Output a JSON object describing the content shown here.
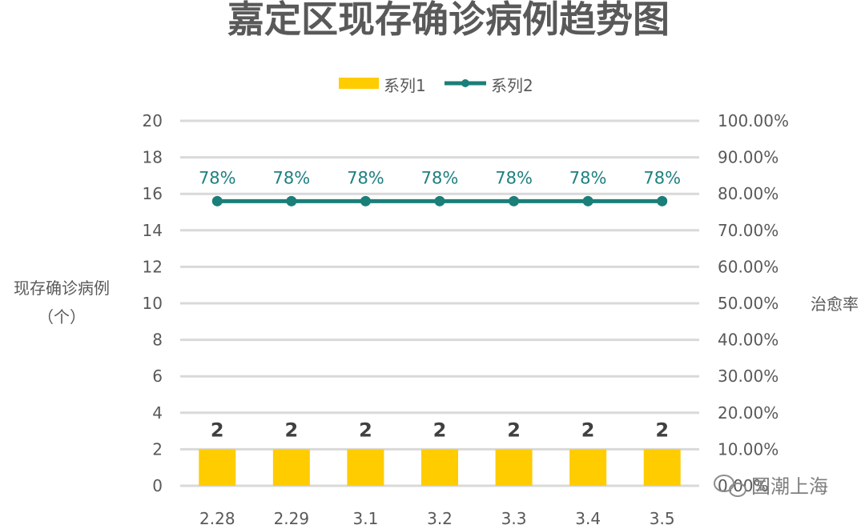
{
  "chart_data": {
    "type": "bar",
    "title": "嘉定区现存确诊病例趋势图",
    "categories": [
      "2.28",
      "2.29",
      "3.1",
      "3.2",
      "3.3",
      "3.4",
      "3.5"
    ],
    "series": [
      {
        "name": "系列1",
        "kind": "bar",
        "axis": "left",
        "values": [
          2,
          2,
          2,
          2,
          2,
          2,
          2
        ],
        "labels": [
          "2",
          "2",
          "2",
          "2",
          "2",
          "2",
          "2"
        ],
        "color": "#ffcc00"
      },
      {
        "name": "系列2",
        "kind": "line",
        "axis": "right",
        "values": [
          0.78,
          0.78,
          0.78,
          0.78,
          0.78,
          0.78,
          0.78
        ],
        "labels": [
          "78%",
          "78%",
          "78%",
          "78%",
          "78%",
          "78%",
          "78%"
        ],
        "color": "#1a7f78"
      }
    ],
    "ylabel_left": [
      "现存确诊病例",
      "（个）"
    ],
    "ylabel_right": "治愈率",
    "ylim_left": [
      0,
      20
    ],
    "ylim_right": [
      0,
      1
    ],
    "yticks_left": [
      "0",
      "2",
      "4",
      "6",
      "8",
      "10",
      "12",
      "14",
      "16",
      "18",
      "20"
    ],
    "yticks_right": [
      "0.00%",
      "10.00%",
      "20.00%",
      "30.00%",
      "40.00%",
      "50.00%",
      "60.00%",
      "70.00%",
      "80.00%",
      "90.00%",
      "100.00%"
    ],
    "grid": true,
    "legend_position": "top-center",
    "gridline_color": "#d9d9d9"
  },
  "watermark": {
    "text": "国潮上海",
    "icon": "wechat-icon"
  }
}
